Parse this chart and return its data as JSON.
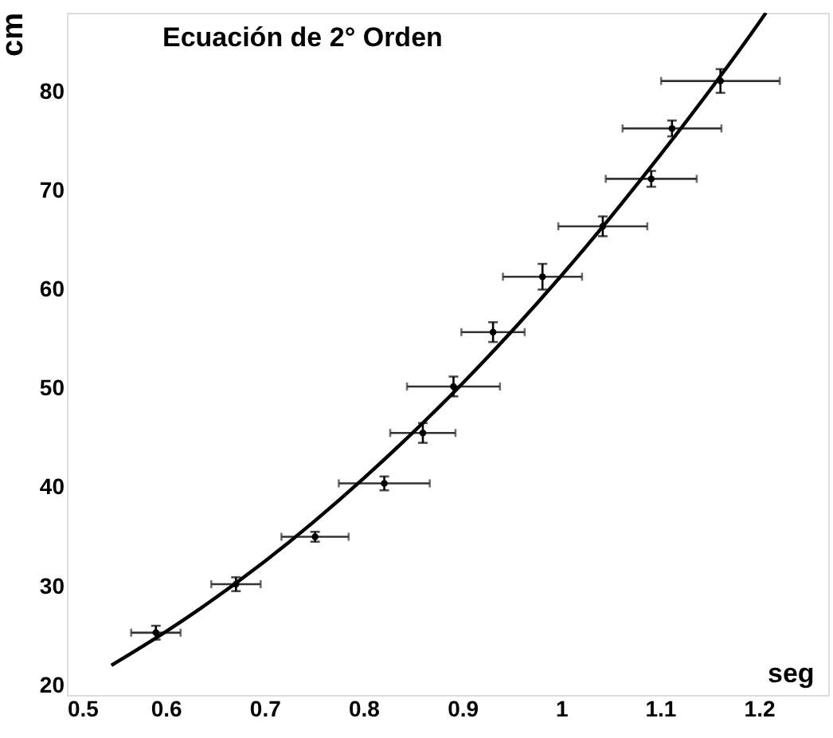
{
  "chart_data": {
    "type": "scatter",
    "title": "Ecuación de 2° Orden",
    "xlabel": "seg",
    "ylabel": "cm",
    "xlim": [
      0.5,
      1.27
    ],
    "ylim": [
      19,
      88
    ],
    "xticks": [
      0.5,
      0.6,
      0.7,
      0.8,
      0.9,
      1,
      1.1,
      1.2
    ],
    "yticks": [
      20,
      30,
      40,
      50,
      60,
      70,
      80
    ],
    "grid": false,
    "series": [
      {
        "marker": "circle",
        "color": "#000000",
        "x": [
          0.59,
          0.671,
          0.751,
          0.821,
          0.86,
          0.891,
          0.931,
          0.981,
          1.042,
          1.091,
          1.112,
          1.161
        ],
        "values": [
          25.3,
          30.2,
          35.0,
          40.4,
          45.5,
          50.2,
          55.7,
          61.3,
          66.4,
          71.2,
          76.3,
          81.1
        ],
        "errors": [
          0.7,
          0.7,
          0.5,
          0.7,
          1.0,
          1.0,
          1.0,
          1.3,
          1.0,
          0.8,
          0.8,
          1.2
        ],
        "xerrors": [
          0.025,
          0.025,
          0.034,
          0.046,
          0.033,
          0.047,
          0.032,
          0.04,
          0.045,
          0.046,
          0.05,
          0.06
        ]
      },
      {
        "type": "line",
        "color": "#000000",
        "line_style": "solid",
        "x": [
          0.545,
          0.6,
          0.7,
          0.8,
          0.9,
          1.0,
          1.1,
          1.2,
          1.207
        ],
        "values": [
          22.0,
          25.4,
          32.5,
          40.9,
          50.5,
          61.4,
          73.6,
          87.0,
          88.0
        ]
      }
    ]
  }
}
